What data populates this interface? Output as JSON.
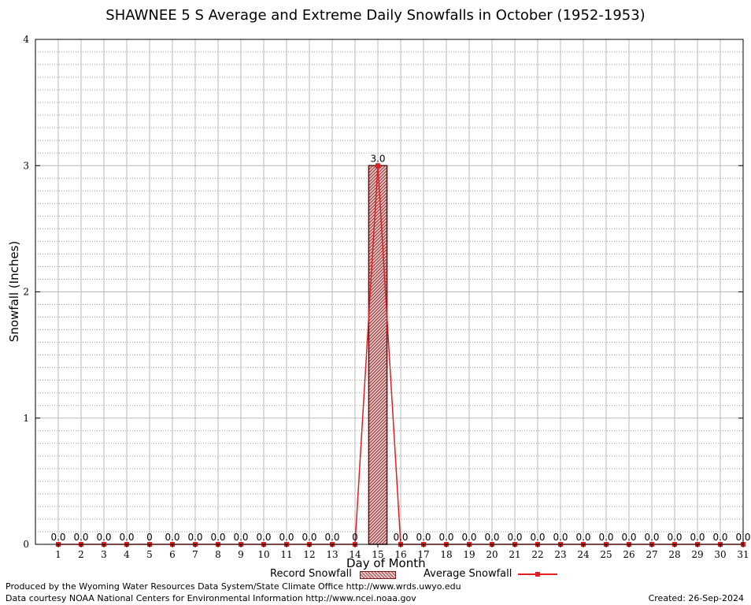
{
  "chart_data": {
    "type": "bar",
    "title": "SHAWNEE 5 S Average and Extreme Daily Snowfalls in October (1952-1953)",
    "xlabel": "Day of Month",
    "ylabel": "Snowfall (Inches)",
    "ylim": [
      0,
      4
    ],
    "y_ticks": [
      "0",
      "1",
      "2",
      "3",
      "4"
    ],
    "categories": [
      "1",
      "2",
      "3",
      "4",
      "5",
      "6",
      "7",
      "8",
      "9",
      "10",
      "11",
      "12",
      "13",
      "14",
      "15",
      "16",
      "17",
      "18",
      "19",
      "20",
      "21",
      "22",
      "23",
      "24",
      "25",
      "26",
      "27",
      "28",
      "29",
      "30",
      "31"
    ],
    "series": [
      {
        "name": "Record Snowfall",
        "kind": "bar",
        "values": [
          0,
          0,
          0,
          0,
          0,
          0,
          0,
          0,
          0,
          0,
          0,
          0,
          0,
          0,
          3.0,
          0,
          0,
          0,
          0,
          0,
          0,
          0,
          0,
          0,
          0,
          0,
          0,
          0,
          0,
          0,
          0
        ]
      },
      {
        "name": "Average Snowfall",
        "kind": "line",
        "values": [
          0,
          0,
          0,
          0,
          0,
          0,
          0,
          0,
          0,
          0,
          0,
          0,
          0,
          0,
          3.0,
          0,
          0,
          0,
          0,
          0,
          0,
          0,
          0,
          0,
          0,
          0,
          0,
          0,
          0,
          0,
          0
        ]
      }
    ],
    "data_labels": [
      "0.0",
      "0.0",
      "0.0",
      "0.0",
      "0",
      "0.0",
      "0.0",
      "0.0",
      "0.0",
      "0.0",
      "0.0",
      "0.0",
      "0.0",
      "0",
      "3.0",
      "0.0",
      "0.0",
      "0.0",
      "0.0",
      "0.0",
      "0.0",
      "0.0",
      "0.0",
      "0.0",
      "0.0",
      "0.0",
      "0.0",
      "0.0",
      "0.0",
      "0.0",
      "0.0"
    ],
    "grid": true,
    "legend_position": "bottom",
    "colors": {
      "average_line": "#e02020",
      "bar_fill": "#c89090",
      "bar_stroke": "#7a1a1a",
      "grid_major": "#b0b0b0",
      "grid_minor": "#b0b0b0"
    }
  },
  "footer": {
    "produced": "Produced by the Wyoming Water Resources Data System/State Climate Office http://www.wrds.uwyo.edu",
    "courtesy": "Data courtesy NOAA National Centers for Environmental Information http://www.ncei.noaa.gov",
    "created": "Created:  26-Sep-2024"
  }
}
